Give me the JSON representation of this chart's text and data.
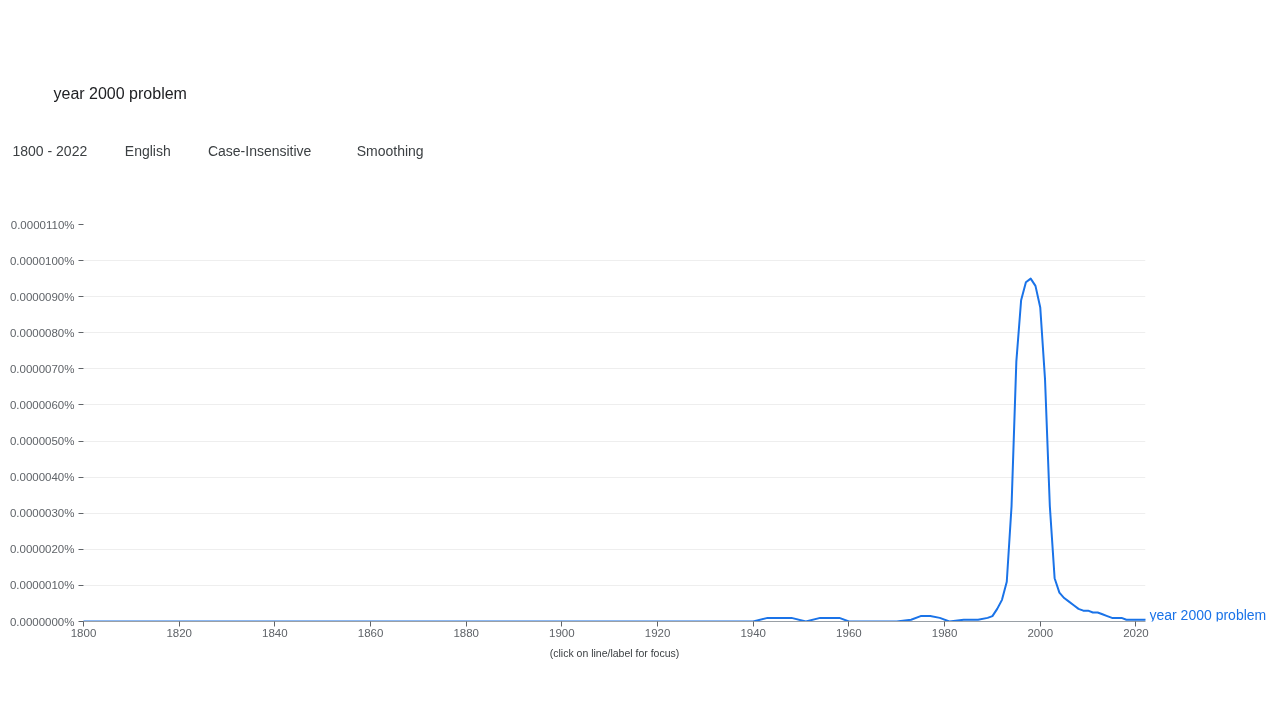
{
  "chart_data": {
    "type": "line",
    "title": "year 2000 problem",
    "annotations": [
      "1800 - 2022",
      "English",
      "Case-Insensitive",
      "Smoothing",
      "(click on line/label for focus)"
    ],
    "x": [
      1800,
      1900,
      1935,
      1940,
      1943,
      1946,
      1948,
      1951,
      1954,
      1958,
      1960,
      1970,
      1973,
      1975,
      1977,
      1979,
      1981,
      1984,
      1987,
      1989,
      1990,
      1991,
      1992,
      1993,
      1994,
      1995,
      1996,
      1997,
      1998,
      1999,
      2000,
      2001,
      2002,
      2003,
      2004,
      2005,
      2006,
      2007,
      2008,
      2009,
      2010,
      2011,
      2012,
      2013,
      2014,
      2015,
      2016,
      2017,
      2018,
      2019,
      2020,
      2021,
      2022
    ],
    "series": [
      {
        "name": "year 2000 problem",
        "color": "#1a73e8",
        "values": [
          0,
          0,
          0,
          0,
          1e-07,
          1e-07,
          1e-07,
          0,
          1e-07,
          1e-07,
          0,
          0,
          5e-08,
          1.5e-07,
          1.5e-07,
          1e-07,
          0,
          5e-08,
          5e-08,
          1e-07,
          1.5e-07,
          3.5e-07,
          6e-07,
          1.1e-06,
          3.2e-06,
          7.2e-06,
          8.9e-06,
          9.4e-06,
          9.5e-06,
          9.3e-06,
          8.7e-06,
          6.7e-06,
          3.2e-06,
          1.2e-06,
          8e-07,
          6.5e-07,
          5.5e-07,
          4.5e-07,
          3.5e-07,
          3e-07,
          3e-07,
          2.5e-07,
          2.5e-07,
          2e-07,
          1.5e-07,
          1e-07,
          1e-07,
          1e-07,
          5e-08,
          5e-08,
          5e-08,
          5e-08,
          5e-08
        ]
      }
    ],
    "xlim": [
      1800,
      2022
    ],
    "ylim": [
      0,
      1.1e-05
    ],
    "xticks": [
      1800,
      1820,
      1840,
      1860,
      1880,
      1900,
      1920,
      1940,
      1960,
      1980,
      2000,
      2020
    ],
    "yticks": [
      {
        "value": 0,
        "label": "0.0000000%"
      },
      {
        "value": 1e-06,
        "label": "0.0000010%"
      },
      {
        "value": 2e-06,
        "label": "0.0000020%"
      },
      {
        "value": 3e-06,
        "label": "0.0000030%"
      },
      {
        "value": 4e-06,
        "label": "0.0000040%"
      },
      {
        "value": 5e-06,
        "label": "0.0000050%"
      },
      {
        "value": 6e-06,
        "label": "0.0000060%"
      },
      {
        "value": 7e-06,
        "label": "0.0000070%"
      },
      {
        "value": 8e-06,
        "label": "0.0000080%"
      },
      {
        "value": 9e-06,
        "label": "0.0000090%"
      },
      {
        "value": 1e-05,
        "label": "0.0000100%"
      },
      {
        "value": 1.1e-05,
        "label": "0.0000110%"
      }
    ],
    "grid": "y",
    "line_style": "solid"
  }
}
